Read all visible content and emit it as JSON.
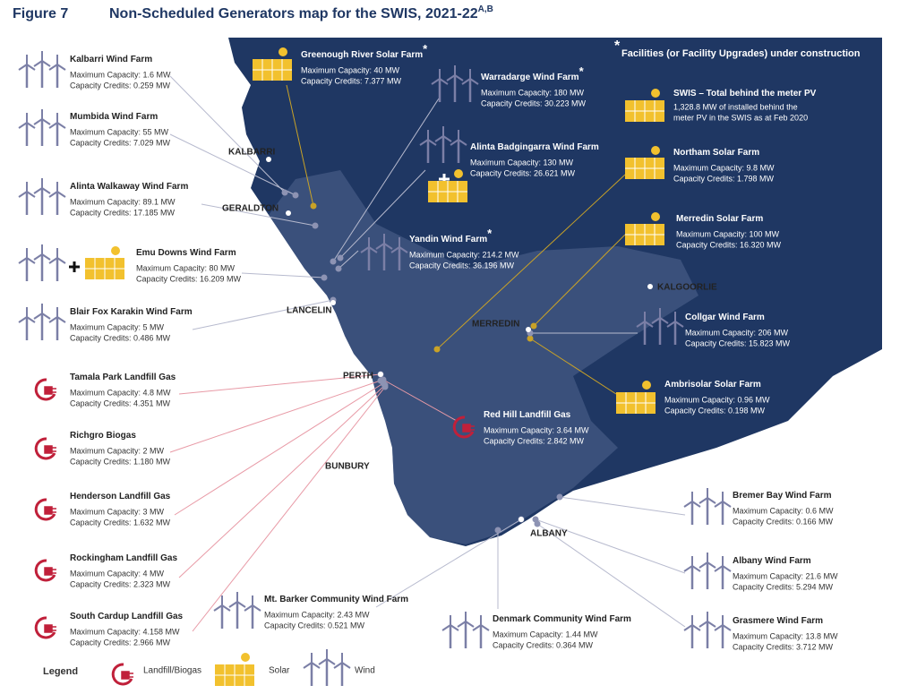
{
  "header": {
    "figure": "Figure 7",
    "title": "Non-Scheduled Generators map for the SWIS, 2021-22",
    "superscript": "A,B"
  },
  "note": {
    "symbol": "*",
    "text": "Facilities (or Facility Upgrades) under construction"
  },
  "towns": [
    "KALBARRI",
    "GERALDTON",
    "LANCELIN",
    "PERTH",
    "BUNBURY",
    "MERREDIN",
    "KALGOORLIE",
    "ALBANY"
  ],
  "facilities": [
    {
      "name": "Kalbarri Wind Farm",
      "icons": [
        "wind"
      ],
      "lines": [
        "Maximum Capacity: 1.6 MW",
        "Capacity Credits: 0.259 MW"
      ]
    },
    {
      "name": "Mumbida Wind Farm",
      "icons": [
        "wind"
      ],
      "lines": [
        "Maximum Capacity: 55 MW",
        "Capacity Credits: 7.029 MW"
      ]
    },
    {
      "name": "Alinta Walkaway Wind Farm",
      "icons": [
        "wind"
      ],
      "lines": [
        "Maximum Capacity: 89.1 MW",
        "Capacity Credits: 17.185 MW"
      ]
    },
    {
      "name": "Emu Downs Wind Farm",
      "icons": [
        "wind",
        "plus",
        "solar"
      ],
      "lines": [
        "Maximum Capacity: 80 MW",
        "Capacity Credits: 16.209 MW"
      ]
    },
    {
      "name": "Blair Fox Karakin Wind Farm",
      "icons": [
        "wind"
      ],
      "lines": [
        "Maximum Capacity: 5 MW",
        "Capacity Credits: 0.486 MW"
      ]
    },
    {
      "name": "Tamala Park Landfill Gas",
      "icons": [
        "landfill"
      ],
      "lines": [
        "Maximum Capacity: 4.8 MW",
        "Capacity Credits: 4.351 MW"
      ]
    },
    {
      "name": "Richgro Biogas",
      "icons": [
        "landfill"
      ],
      "lines": [
        "Maximum Capacity:  2 MW",
        "Capacity Credits: 1.180 MW"
      ]
    },
    {
      "name": "Henderson Landfill Gas",
      "icons": [
        "landfill"
      ],
      "lines": [
        "Maximum Capacity: 3 MW",
        "Capacity Credits: 1.632 MW"
      ]
    },
    {
      "name": "Rockingham Landfill Gas",
      "icons": [
        "landfill"
      ],
      "lines": [
        "Maximum Capacity: 4 MW",
        "Capacity Credits: 2.323 MW"
      ]
    },
    {
      "name": "South Cardup Landfill Gas",
      "icons": [
        "landfill"
      ],
      "lines": [
        "Maximum Capacity: 4.158 MW",
        "Capacity Credits: 2.966 MW"
      ]
    },
    {
      "name": "Mt. Barker Community Wind Farm",
      "icons": [
        "wind"
      ],
      "lines": [
        "Maximum Capacity: 2.43 MW",
        "Capacity Credits: 0.521 MW"
      ]
    },
    {
      "name": "Denmark Community Wind Farm",
      "icons": [
        "wind"
      ],
      "lines": [
        "Maximum Capacity:  1.44 MW",
        "Capacity Credits: 0.364 MW"
      ]
    },
    {
      "name": "Grasmere Wind Farm",
      "icons": [
        "wind"
      ],
      "lines": [
        "Maximum Capacity: 13.8 MW",
        "Capacity Credits: 3.712 MW"
      ]
    },
    {
      "name": "Albany Wind Farm",
      "icons": [
        "wind"
      ],
      "lines": [
        "Maximum Capacity: 21.6 MW",
        "Capacity Credits: 5.294 MW"
      ]
    },
    {
      "name": "Bremer Bay Wind Farm",
      "icons": [
        "wind"
      ],
      "lines": [
        "Maximum Capacity: 0.6 MW",
        "Capacity Credits: 0.166 MW"
      ]
    },
    {
      "name": "Ambrisolar Solar Farm",
      "icons": [
        "solar"
      ],
      "lines": [
        "Maximum Capacity: 0.96 MW",
        "Capacity Credits: 0.198 MW"
      ]
    },
    {
      "name": "Collgar Wind Farm",
      "icons": [
        "wind"
      ],
      "lines": [
        "Maximum Capacity: 206 MW",
        "Capacity Credits: 15.823 MW"
      ]
    },
    {
      "name": "Merredin Solar Farm",
      "icons": [
        "solar"
      ],
      "lines": [
        "Maximum Capacity: 100 MW",
        "Capacity Credits: 16.320 MW"
      ]
    },
    {
      "name": "Northam Solar Farm",
      "icons": [
        "solar"
      ],
      "lines": [
        "Maximum Capacity: 9.8 MW",
        "Capacity Credits: 1.798 MW"
      ]
    },
    {
      "name": "SWIS – Total behind the meter PV",
      "icons": [
        "solar"
      ],
      "lines": [
        "1,328.8 MW of installed behind the",
        "meter PV in the SWIS as at Feb 2020"
      ]
    },
    {
      "name": "Red Hill Landfill Gas",
      "icons": [
        "landfill"
      ],
      "lines": [
        "Maximum Capacity: 3.64 MW",
        "Capacity Credits: 2.842 MW"
      ]
    },
    {
      "name": "Yandin Wind Farm",
      "construction": "*",
      "icons": [
        "wind"
      ],
      "lines": [
        "Maximum Capacity:  214.2 MW",
        "Capacity Credits: 36.196 MW"
      ]
    },
    {
      "name": "Alinta Badgingarra Wind Farm",
      "icons": [
        "wind",
        "plus",
        "solar"
      ],
      "lines": [
        "Maximum Capacity: 130  MW",
        "Capacity Credits: 26.621 MW"
      ]
    },
    {
      "name": "Warradarge Wind Farm",
      "construction": "*",
      "icons": [
        "wind"
      ],
      "lines": [
        "Maximum Capacity: 180 MW",
        "Capacity Credits: 30.223 MW"
      ]
    },
    {
      "name": "Greenough River Solar Farm",
      "construction": "*",
      "icons": [
        "solar"
      ],
      "lines": [
        "Maximum Capacity: 40 MW",
        "Capacity Credits: 7.377 MW"
      ]
    }
  ],
  "legend": {
    "title": "Legend",
    "items": [
      {
        "icon": "landfill",
        "label": "Landfill/Biogas"
      },
      {
        "icon": "solar",
        "label": "Solar"
      },
      {
        "icon": "wind",
        "label": "Wind"
      }
    ]
  }
}
